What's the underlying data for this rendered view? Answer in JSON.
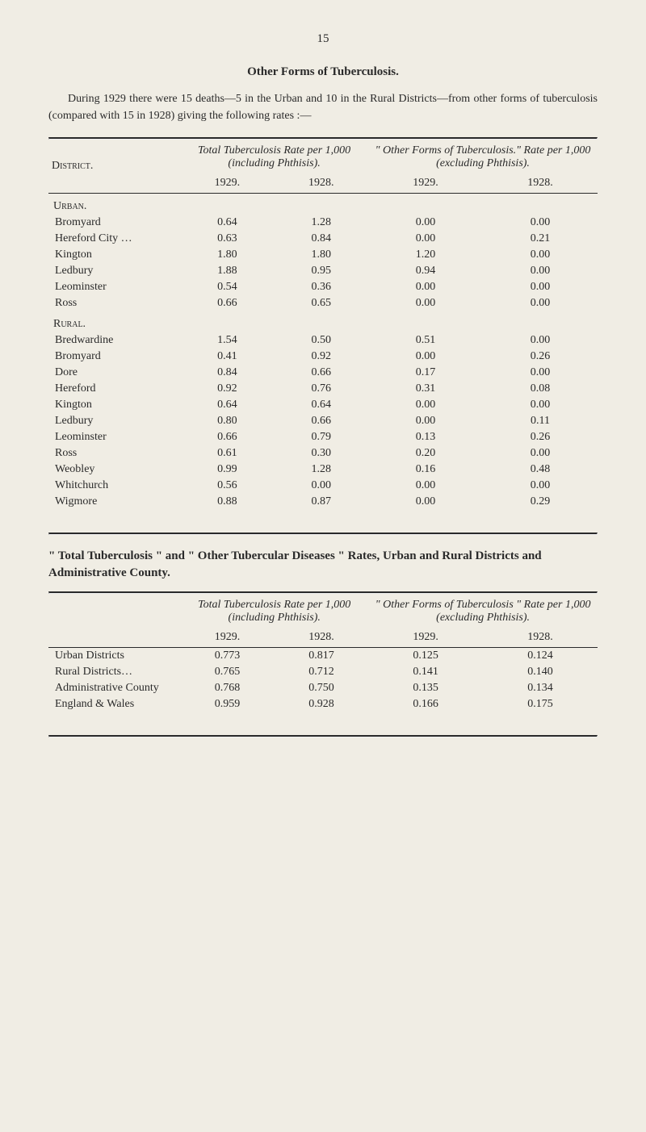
{
  "page_number": "15",
  "section1": {
    "title": "Other Forms of Tuberculosis.",
    "intro": "During 1929 there were 15 deaths—5 in the Urban and 10 in the Rural Districts—from other forms of tuberculosis (compared with 15 in 1928) giving the following rates :—",
    "headers": {
      "district": "District.",
      "col_a_title": "Total Tuberculosis Rate per 1,000 (including Phthisis).",
      "col_b_title": "\" Other Forms of Tuberculosis.\" Rate per 1,000 (excluding Phthisis).",
      "y1": "1929.",
      "y2": "1928.",
      "y3": "1929.",
      "y4": "1928."
    },
    "groups": [
      {
        "label": "Urban.",
        "rows": [
          {
            "name": "Bromyard",
            "a": "0.64",
            "b": "1.28",
            "c": "0.00",
            "d": "0.00"
          },
          {
            "name": "Hereford City …",
            "a": "0.63",
            "b": "0.84",
            "c": "0.00",
            "d": "0.21"
          },
          {
            "name": "Kington",
            "a": "1.80",
            "b": "1.80",
            "c": "1.20",
            "d": "0.00"
          },
          {
            "name": "Ledbury",
            "a": "1.88",
            "b": "0.95",
            "c": "0.94",
            "d": "0.00"
          },
          {
            "name": "Leominster",
            "a": "0.54",
            "b": "0.36",
            "c": "0.00",
            "d": "0.00"
          },
          {
            "name": "Ross",
            "a": "0.66",
            "b": "0.65",
            "c": "0.00",
            "d": "0.00"
          }
        ]
      },
      {
        "label": "Rural.",
        "rows": [
          {
            "name": "Bredwardine",
            "a": "1.54",
            "b": "0.50",
            "c": "0.51",
            "d": "0.00"
          },
          {
            "name": "Bromyard",
            "a": "0.41",
            "b": "0.92",
            "c": "0.00",
            "d": "0.26"
          },
          {
            "name": "Dore",
            "a": "0.84",
            "b": "0.66",
            "c": "0.17",
            "d": "0.00"
          },
          {
            "name": "Hereford",
            "a": "0.92",
            "b": "0.76",
            "c": "0.31",
            "d": "0.08"
          },
          {
            "name": "Kington",
            "a": "0.64",
            "b": "0.64",
            "c": "0.00",
            "d": "0.00"
          },
          {
            "name": "Ledbury",
            "a": "0.80",
            "b": "0.66",
            "c": "0.00",
            "d": "0.11"
          },
          {
            "name": "Leominster",
            "a": "0.66",
            "b": "0.79",
            "c": "0.13",
            "d": "0.26"
          },
          {
            "name": "Ross",
            "a": "0.61",
            "b": "0.30",
            "c": "0.20",
            "d": "0.00"
          },
          {
            "name": "Weobley",
            "a": "0.99",
            "b": "1.28",
            "c": "0.16",
            "d": "0.48"
          },
          {
            "name": "Whitchurch",
            "a": "0.56",
            "b": "0.00",
            "c": "0.00",
            "d": "0.00"
          },
          {
            "name": "Wigmore",
            "a": "0.88",
            "b": "0.87",
            "c": "0.00",
            "d": "0.29"
          }
        ]
      }
    ]
  },
  "section2": {
    "title": "\" Total Tuberculosis \" and \" Other Tubercular Diseases \" Rates, Urban and Rural Districts and Administrative County.",
    "headers": {
      "col_a_title": "Total Tuberculosis Rate per 1,000 (including Phthisis).",
      "col_b_title": "\" Other Forms of Tuberculosis \" Rate per 1,000 (excluding Phthisis).",
      "y1": "1929.",
      "y2": "1928.",
      "y3": "1929.",
      "y4": "1928."
    },
    "rows": [
      {
        "name": "Urban Districts",
        "a": "0.773",
        "b": "0.817",
        "c": "0.125",
        "d": "0.124"
      },
      {
        "name": "Rural Districts…",
        "a": "0.765",
        "b": "0.712",
        "c": "0.141",
        "d": "0.140"
      },
      {
        "name": "Administrative County",
        "a": "0.768",
        "b": "0.750",
        "c": "0.135",
        "d": "0.134"
      },
      {
        "name": "England & Wales",
        "a": "0.959",
        "b": "0.928",
        "c": "0.166",
        "d": "0.175"
      }
    ]
  }
}
